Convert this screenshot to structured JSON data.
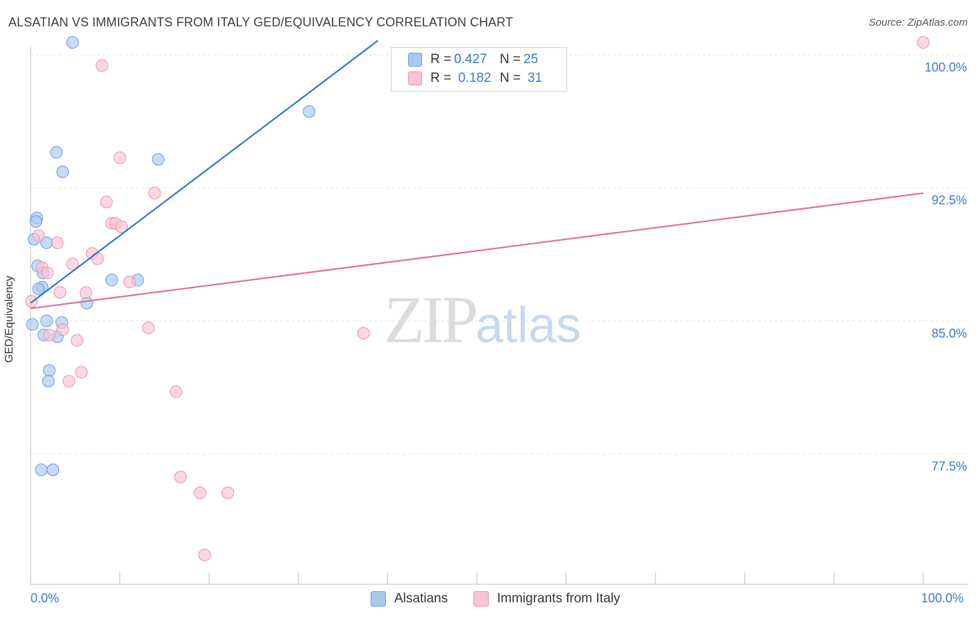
{
  "title": "ALSATIAN VS IMMIGRANTS FROM ITALY GED/EQUIVALENCY CORRELATION CHART",
  "source": "Source: ZipAtlas.com",
  "watermark": {
    "zip": "ZIP",
    "atlas": "atlas"
  },
  "legend": {
    "rows": [
      {
        "r_label": "R =",
        "r_value": "0.427",
        "n_label": "N =",
        "n_value": "25",
        "color": "#a9c8f0",
        "border": "#6a9be0"
      },
      {
        "r_label": "R =",
        "r_value": "0.182",
        "n_label": "N =",
        "n_value": "31",
        "color": "#f9c4d4",
        "border": "#ee8fae"
      }
    ]
  },
  "bottom_legend": [
    {
      "label": "Alsatians",
      "color": "#a9c8f0",
      "border": "#6a9be0"
    },
    {
      "label": "Immigrants from Italy",
      "color": "#f9c4d4",
      "border": "#ee8fae"
    }
  ],
  "x_axis_labels": {
    "left": "0.0%",
    "right": "100.0%"
  },
  "chart_data": {
    "type": "scatter",
    "title": "ALSATIAN VS IMMIGRANTS FROM ITALY GED/EQUIVALENCY CORRELATION CHART",
    "xlabel": "",
    "ylabel": "GED/Equivalency",
    "xlim": [
      0,
      100
    ],
    "ylim": [
      70.5,
      100.8
    ],
    "y_ticks": [
      {
        "value": 100.0,
        "label": "100.0%"
      },
      {
        "value": 92.5,
        "label": "92.5%"
      },
      {
        "value": 85.0,
        "label": "85.0%"
      },
      {
        "value": 77.5,
        "label": "77.5%"
      }
    ],
    "x_minor_ticks": [
      0,
      10,
      20,
      30,
      40,
      50,
      60,
      70,
      80,
      90,
      100
    ],
    "legend_position": "top-center",
    "series": [
      {
        "name": "Alsatians",
        "color": "#a9c8f0",
        "stroke": "#6a9be0",
        "line_color": "#2f74d0",
        "trend": {
          "x0": 0,
          "y0": 86.0,
          "x1": 38.9,
          "y1": 100.8
        },
        "points": [
          [
            4.7,
            100.7
          ],
          [
            31.2,
            96.8
          ],
          [
            2.9,
            94.5
          ],
          [
            14.3,
            94.1
          ],
          [
            3.6,
            93.4
          ],
          [
            0.7,
            90.8
          ],
          [
            0.6,
            90.6
          ],
          [
            0.4,
            89.6
          ],
          [
            1.8,
            89.4
          ],
          [
            0.8,
            88.1
          ],
          [
            1.4,
            87.7
          ],
          [
            9.1,
            87.3
          ],
          [
            12.0,
            87.3
          ],
          [
            1.3,
            86.9
          ],
          [
            0.9,
            86.8
          ],
          [
            6.3,
            86.0
          ],
          [
            1.8,
            85.0
          ],
          [
            3.5,
            84.9
          ],
          [
            0.2,
            84.8
          ],
          [
            1.5,
            84.2
          ],
          [
            3.0,
            84.1
          ],
          [
            2.1,
            82.2
          ],
          [
            2.0,
            81.6
          ],
          [
            1.2,
            76.6
          ],
          [
            2.5,
            76.6
          ]
        ]
      },
      {
        "name": "Immigrants from Italy",
        "color": "#f9c4d4",
        "stroke": "#ee8fae",
        "line_color": "#e26f97",
        "trend": {
          "x0": 0,
          "y0": 85.7,
          "x1": 100,
          "y1": 92.2
        },
        "points": [
          [
            100.0,
            100.7
          ],
          [
            8.0,
            99.4
          ],
          [
            10.0,
            94.2
          ],
          [
            13.9,
            92.2
          ],
          [
            8.5,
            91.7
          ],
          [
            9.1,
            90.5
          ],
          [
            9.5,
            90.5
          ],
          [
            10.2,
            90.3
          ],
          [
            0.9,
            89.8
          ],
          [
            3.0,
            89.4
          ],
          [
            6.9,
            88.8
          ],
          [
            7.5,
            88.5
          ],
          [
            4.7,
            88.2
          ],
          [
            1.3,
            88.0
          ],
          [
            1.9,
            87.7
          ],
          [
            11.1,
            87.2
          ],
          [
            3.3,
            86.6
          ],
          [
            6.2,
            86.6
          ],
          [
            0.1,
            86.1
          ],
          [
            13.2,
            84.6
          ],
          [
            37.3,
            84.3
          ],
          [
            3.6,
            84.5
          ],
          [
            2.1,
            84.2
          ],
          [
            5.2,
            83.9
          ],
          [
            5.7,
            82.1
          ],
          [
            4.3,
            81.6
          ],
          [
            16.3,
            81.0
          ],
          [
            16.8,
            76.2
          ],
          [
            19.0,
            75.3
          ],
          [
            22.1,
            75.3
          ],
          [
            19.5,
            71.8
          ]
        ]
      }
    ]
  }
}
